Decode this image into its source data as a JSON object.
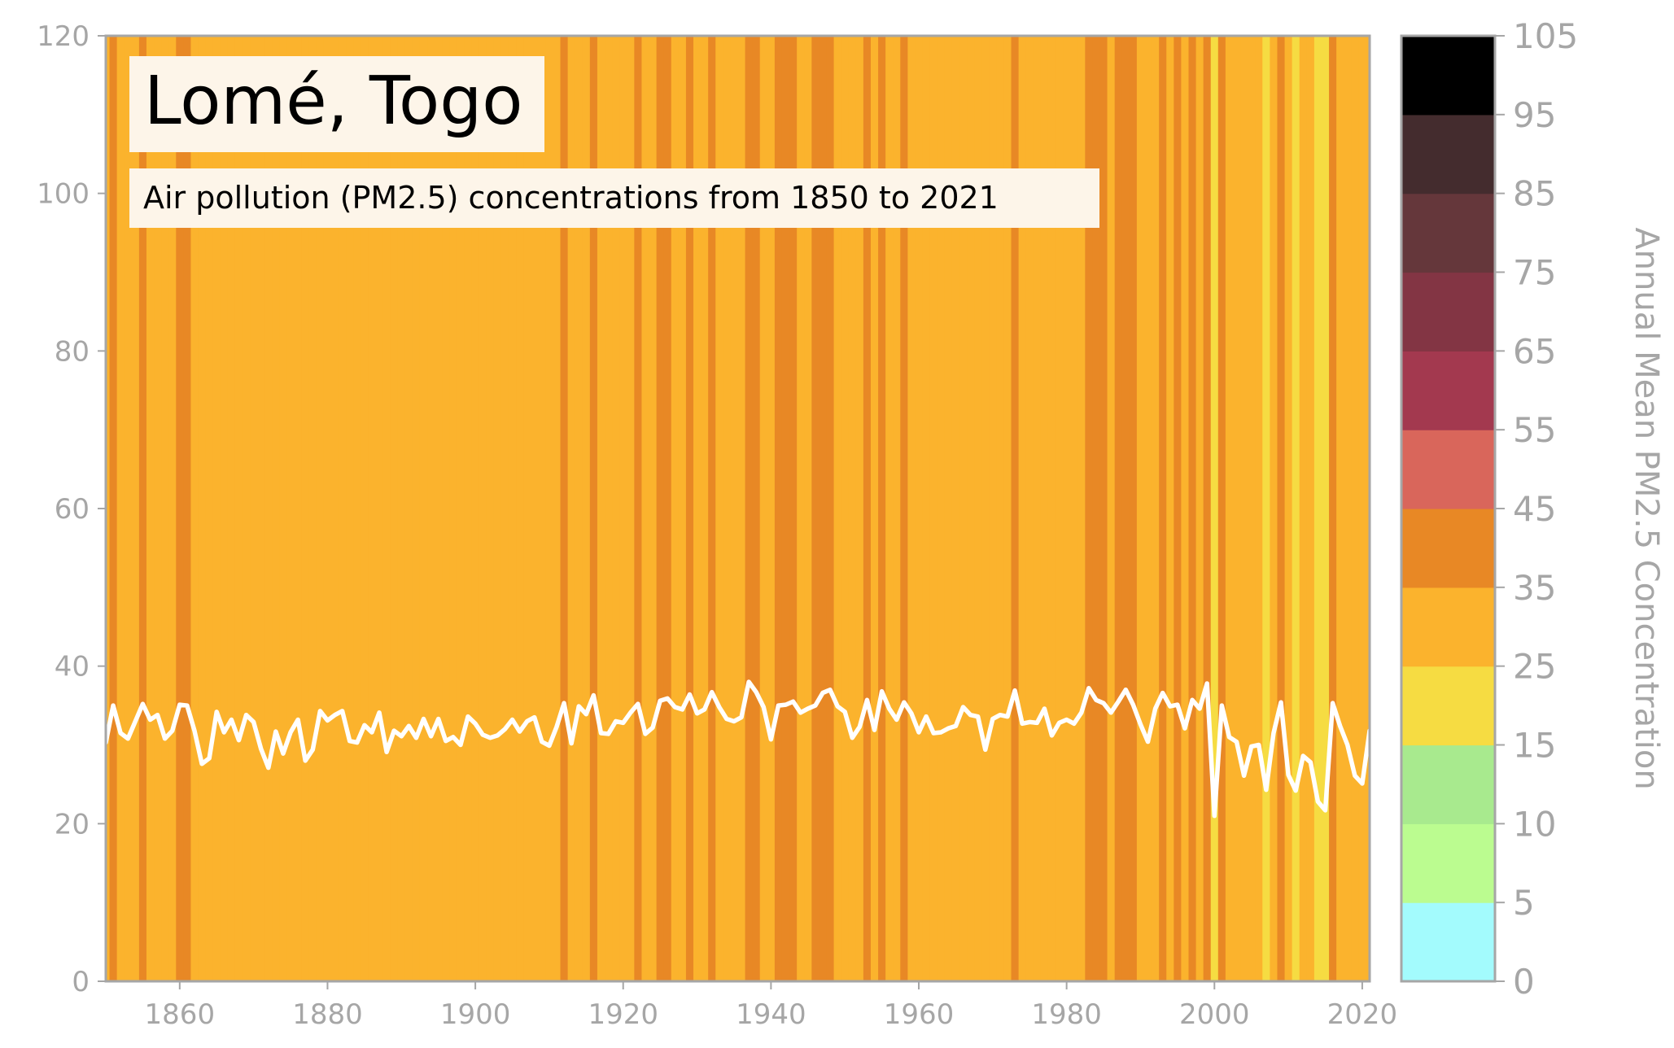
{
  "chart_data": {
    "type": "line",
    "title": "Lomé, Togo",
    "subtitle": "Air pollution (PM2.5) concentrations from 1850 to 2021",
    "xlabel": "",
    "ylabel": "",
    "xlim": [
      1850,
      2021
    ],
    "ylim": [
      0,
      120
    ],
    "x_ticks": [
      "1860",
      "1880",
      "1900",
      "1920",
      "1940",
      "1960",
      "1980",
      "2000",
      "2020"
    ],
    "y_ticks": [
      "0",
      "20",
      "40",
      "60",
      "80",
      "100",
      "120"
    ],
    "line_color": "#ffffff",
    "background_stripes": "each year's vertical stripe is colored by the colorbar bin of that year's value",
    "series": [
      {
        "x_start": 1850,
        "values": [
          30.3,
          35.0,
          31.5,
          30.8,
          33.0,
          35.2,
          33.2,
          33.8,
          30.8,
          31.8,
          35.1,
          35.0,
          31.8,
          27.6,
          28.3,
          34.2,
          31.6,
          33.2,
          30.6,
          33.8,
          32.9,
          29.5,
          27.1,
          31.7,
          28.9,
          31.6,
          33.2,
          28.0,
          29.4,
          34.3,
          33.1,
          33.8,
          34.3,
          30.5,
          30.3,
          32.5,
          31.6,
          34.1,
          29.1,
          31.8,
          31.1,
          32.4,
          30.9,
          33.3,
          31.1,
          33.3,
          30.5,
          31.0,
          30.0,
          33.6,
          32.7,
          31.3,
          30.9,
          31.2,
          32.0,
          33.2,
          31.7,
          33.0,
          33.5,
          30.4,
          29.9,
          32.3,
          35.3,
          30.2,
          34.9,
          33.9,
          36.3,
          31.5,
          31.4,
          33.0,
          32.8,
          34.1,
          35.2,
          31.4,
          32.2,
          35.6,
          35.9,
          34.8,
          34.5,
          36.4,
          34.0,
          34.5,
          36.7,
          34.8,
          33.3,
          33.0,
          33.5,
          38.0,
          36.7,
          34.8,
          30.7,
          35.0,
          35.1,
          35.5,
          34.1,
          34.6,
          35.0,
          36.6,
          37.0,
          34.9,
          34.2,
          30.9,
          32.3,
          35.7,
          31.9,
          36.8,
          34.6,
          33.2,
          35.4,
          34.0,
          31.6,
          33.6,
          31.5,
          31.6,
          32.1,
          32.4,
          34.8,
          33.8,
          33.6,
          29.4,
          33.3,
          33.8,
          33.6,
          36.9,
          32.7,
          32.9,
          32.8,
          34.6,
          31.2,
          32.8,
          33.2,
          32.7,
          34.1,
          37.2,
          35.7,
          35.3,
          34.1,
          35.5,
          37.0,
          35.1,
          32.6,
          30.4,
          34.6,
          36.6,
          34.9,
          35.1,
          32.1,
          35.7,
          34.6,
          37.8,
          21.0,
          35.0,
          31.0,
          30.4,
          26.1,
          29.8,
          30.0,
          24.3,
          31.5,
          35.4,
          26.2,
          24.2,
          28.6,
          27.8,
          22.8,
          21.7,
          35.3,
          32.4,
          30.0,
          26.1,
          25.1,
          31.8,
          27.4,
          31.4
        ]
      }
    ],
    "colorbar": {
      "label": "Annual Mean PM2.5 Concentration",
      "tick_labels": [
        "0",
        "5",
        "10",
        "15",
        "25",
        "35",
        "45",
        "55",
        "65",
        "75",
        "85",
        "95",
        "105"
      ],
      "bins": [
        {
          "min": 0,
          "max": 5,
          "color": "#a3fbfd"
        },
        {
          "min": 5,
          "max": 10,
          "color": "#bbfc90"
        },
        {
          "min": 10,
          "max": 15,
          "color": "#a8ea8e"
        },
        {
          "min": 15,
          "max": 25,
          "color": "#f6dc42"
        },
        {
          "min": 25,
          "max": 35,
          "color": "#fbb32d"
        },
        {
          "min": 35,
          "max": 45,
          "color": "#e88825"
        },
        {
          "min": 45,
          "max": 55,
          "color": "#d9665b"
        },
        {
          "min": 55,
          "max": 65,
          "color": "#a3394f"
        },
        {
          "min": 65,
          "max": 75,
          "color": "#833544"
        },
        {
          "min": 75,
          "max": 85,
          "color": "#65373b"
        },
        {
          "min": 85,
          "max": 95,
          "color": "#442c2e"
        },
        {
          "min": 95,
          "max": 105,
          "color": "#000000"
        }
      ]
    }
  }
}
